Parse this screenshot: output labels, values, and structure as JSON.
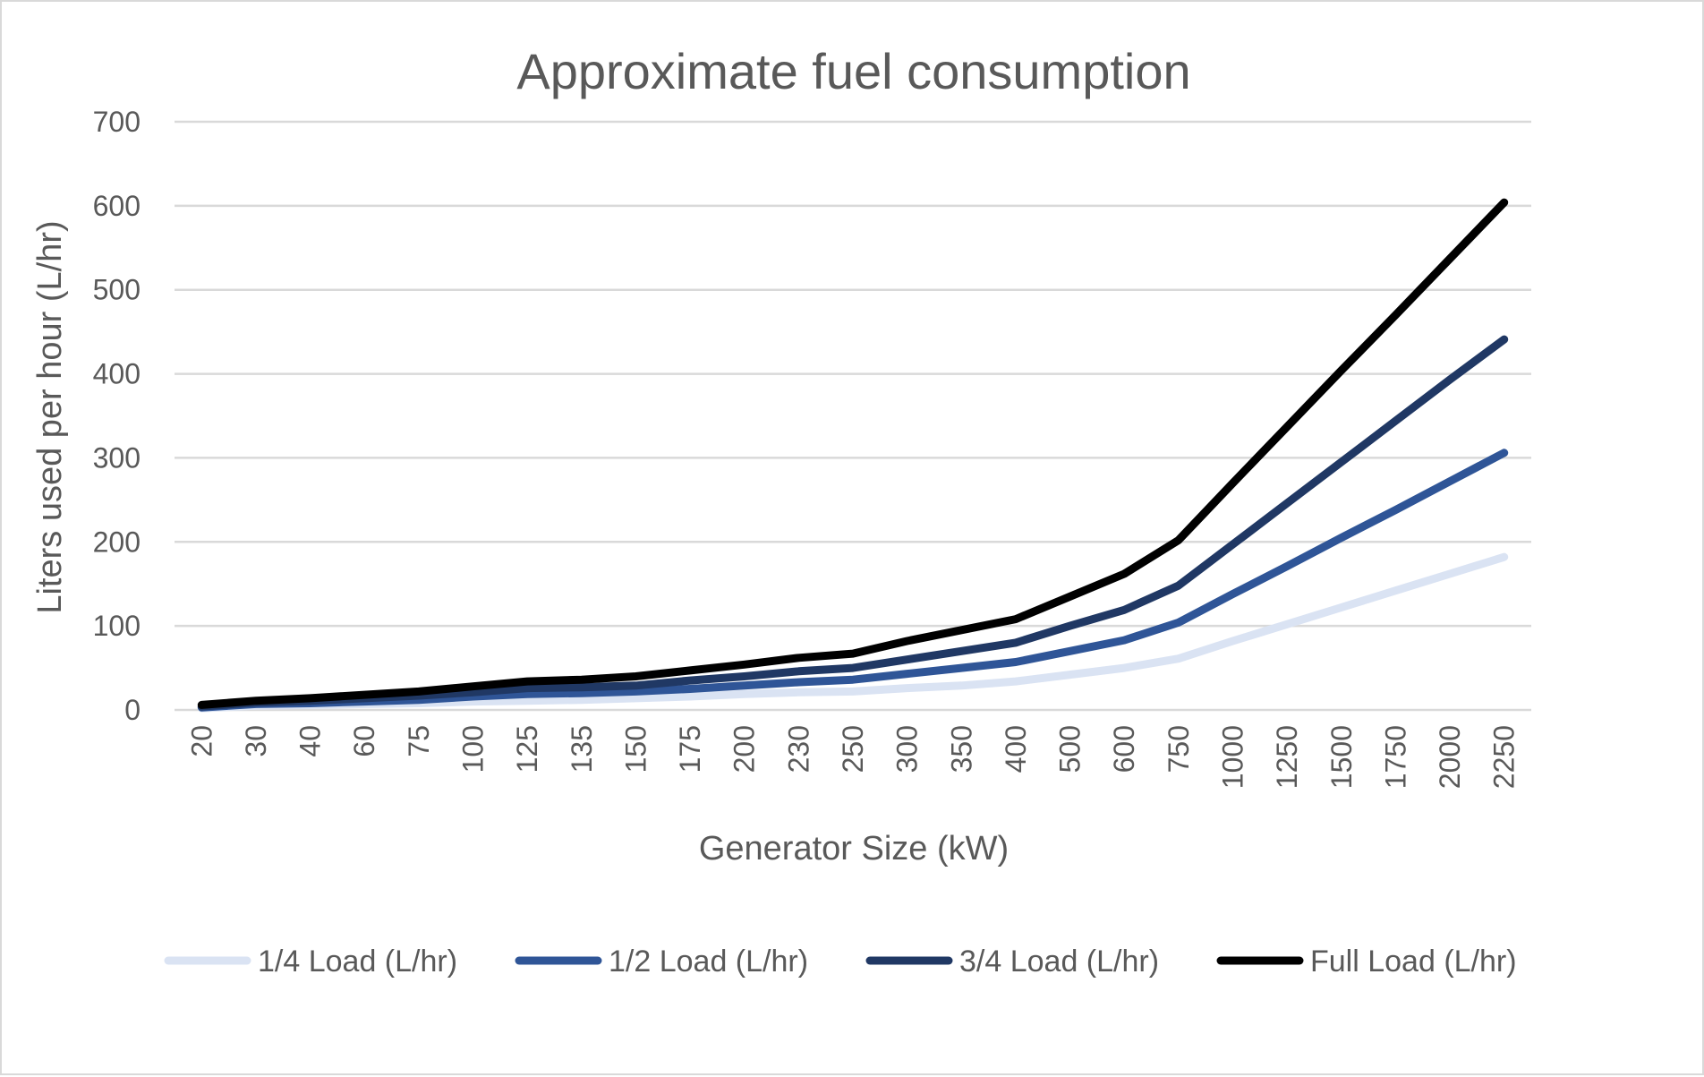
{
  "chart_data": {
    "type": "line",
    "title": "Approximate fuel consumption",
    "xlabel": "Generator Size (kW)",
    "ylabel": "Liters used per hour (L/hr)",
    "ylim": [
      0,
      700
    ],
    "yticks": [
      0,
      100,
      200,
      300,
      400,
      500,
      600,
      700
    ],
    "grid": true,
    "legend_position": "bottom",
    "categories": [
      "20",
      "30",
      "40",
      "60",
      "75",
      "100",
      "125",
      "135",
      "150",
      "175",
      "200",
      "230",
      "250",
      "300",
      "350",
      "400",
      "500",
      "600",
      "750",
      "1000",
      "1250",
      "1500",
      "1750",
      "2000",
      "2250"
    ],
    "series": [
      {
        "name": "1/4 Load (L/hr)",
        "color": "#dae3f3",
        "values": [
          2,
          5,
          6,
          7,
          8,
          10,
          11,
          12,
          14,
          16,
          19,
          21,
          22,
          26,
          29,
          34,
          42,
          50,
          61,
          82,
          102,
          122,
          142,
          162,
          182
        ]
      },
      {
        "name": "1/2 Load (L/hr)",
        "color": "#2f5597",
        "values": [
          3,
          7,
          8,
          10,
          12,
          16,
          19,
          20,
          22,
          25,
          29,
          33,
          36,
          43,
          50,
          57,
          70,
          83,
          104,
          138,
          171,
          205,
          238,
          272,
          306
        ]
      },
      {
        "name": "3/4 Load (L/hr)",
        "color": "#203864",
        "values": [
          4,
          9,
          11,
          14,
          17,
          21,
          26,
          27,
          29,
          35,
          40,
          46,
          50,
          60,
          70,
          80,
          100,
          119,
          148,
          197,
          246,
          295,
          344,
          393,
          441
        ]
      },
      {
        "name": "Full Load (L/hr)",
        "color": "#000000",
        "values": [
          6,
          11,
          14,
          18,
          22,
          28,
          34,
          36,
          40,
          47,
          54,
          62,
          67,
          82,
          95,
          108,
          135,
          162,
          202,
          270,
          337,
          404,
          470,
          537,
          604
        ]
      }
    ]
  }
}
